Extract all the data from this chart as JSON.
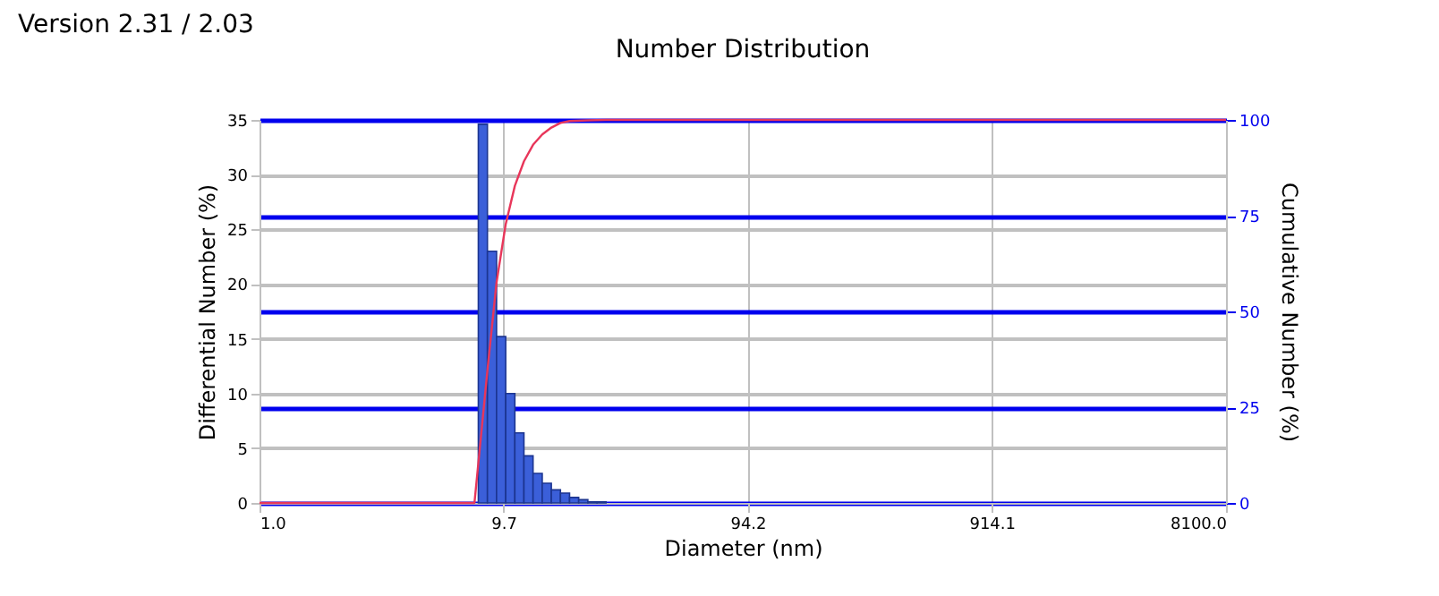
{
  "chart_data": {
    "type": "histogram",
    "title": "Number Distribution",
    "xlabel": "Diameter (nm)",
    "ylabel": "Differential Number (%)",
    "y2label": "Cumulative Number (%)",
    "annotations": [
      "Version 2.31 / 2.03"
    ],
    "bins": [
      7.67,
      8.35,
      9.09,
      9.9,
      10.78,
      11.73,
      12.77,
      13.91,
      15.14,
      16.48,
      17.94,
      19.53,
      21.27,
      23.16,
      25.2
    ],
    "values": [
      34.6,
      23.0,
      15.2,
      10.0,
      6.4,
      4.3,
      2.7,
      1.8,
      1.2,
      0.9,
      0.5,
      0.3,
      0.1,
      0.1
    ],
    "color": "#3b5fd9",
    "series": [
      {
        "type": "line",
        "axis": "y2",
        "color": "#e8365a",
        "x": [
          1.0,
          7.4,
          8.35,
          9.09,
          9.9,
          10.78,
          11.73,
          12.77,
          13.91,
          15.14,
          16.48,
          17.94,
          21.27,
          25.2,
          30,
          8100
        ],
        "values": [
          0,
          0,
          34.6,
          57.6,
          72.8,
          82.8,
          89.2,
          93.5,
          96.2,
          98.0,
          99.2,
          99.7,
          99.9,
          100,
          100,
          100
        ]
      }
    ],
    "log": "x",
    "xlim": [
      1,
      8100
    ],
    "xticks": [
      {
        "value": 1,
        "label": "1.0"
      },
      9.7,
      94.2,
      914.1,
      {
        "value": 8100,
        "label": "8100.0"
      }
    ],
    "ylim": [
      0,
      35
    ],
    "yticks": [
      0,
      5,
      10,
      15,
      20,
      25,
      30,
      35
    ],
    "y2lim": [
      0,
      100
    ],
    "y2ticks": [
      0,
      25,
      50,
      75,
      100
    ],
    "grid": true
  }
}
